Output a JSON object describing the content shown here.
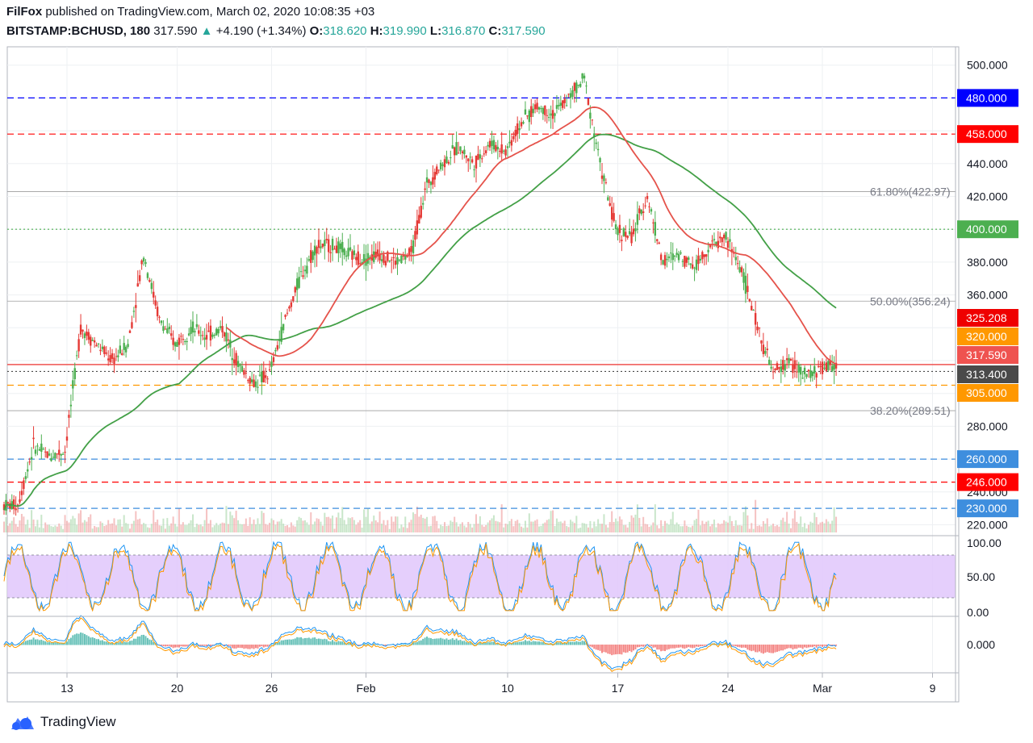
{
  "header": {
    "author": "FilFox",
    "published_text": "published on TradingView.com, March 02, 2020 10:08:35 +03",
    "symbol": "BITSTAMP:BCHUSD, 180",
    "last": "317.590",
    "change_arrow": "▲",
    "change": "+4.190 (+1.34%)",
    "o_label": "O:",
    "o": "318.620",
    "h_label": "H:",
    "h": "319.990",
    "l_label": "L:",
    "l": "316.870",
    "c_label": "C:",
    "c": "317.590"
  },
  "brand": {
    "name": "TradingView"
  },
  "colors": {
    "bull": "#26a69a",
    "bear": "#ef5350",
    "candle_up": "#4caf50",
    "candle_down": "#e53935",
    "ma_fast": "#e5534b",
    "ma_slow": "#43a047"
  },
  "chart_data": {
    "type": "candlestick",
    "x_tick_labels": [
      "13",
      "20",
      "26",
      "Feb",
      "10",
      "17",
      "24",
      "Mar",
      "9"
    ],
    "price_ticks": [
      "500.000",
      "440.000",
      "420.000",
      "380.000",
      "360.000",
      "280.000",
      "240.000",
      "220.000"
    ],
    "price_range": [
      215,
      510
    ],
    "horizontal_levels": [
      {
        "label": "480.000",
        "value": 480,
        "color": "#0000ff",
        "style": "dashed"
      },
      {
        "label": "458.000",
        "value": 458,
        "color": "#ff0000",
        "style": "dashed"
      },
      {
        "label": "400.000",
        "value": 400,
        "color": "#4caf50",
        "style": "dotted"
      },
      {
        "label": "325.208",
        "value": 325.208,
        "color": "#ef0000",
        "style": "none"
      },
      {
        "label": "320.000",
        "value": 320,
        "color": "#ff9800",
        "style": "none"
      },
      {
        "label": "317.590",
        "value": 317.59,
        "color": "#ef5350",
        "style": "solid"
      },
      {
        "label": "313.400",
        "value": 313.4,
        "color": "#4a4a4a",
        "style": "dotted"
      },
      {
        "label": "305.000",
        "value": 305,
        "color": "#ff9800",
        "style": "dashed"
      },
      {
        "label": "260.000",
        "value": 260,
        "color": "#3e8ede",
        "style": "dashed"
      },
      {
        "label": "246.000",
        "value": 246,
        "color": "#ff0000",
        "style": "dashed"
      },
      {
        "label": "230.000",
        "value": 230,
        "color": "#3e8ede",
        "style": "dashed"
      }
    ],
    "fib_levels": [
      {
        "label": "61.80%(422.97)",
        "value": 422.97
      },
      {
        "label": "50.00%(356.24)",
        "value": 356.24
      },
      {
        "label": "38.20%(289.51)",
        "value": 289.51
      }
    ],
    "price_series_approx": [
      [
        "Jan 9",
        232
      ],
      [
        "Jan 10",
        268
      ],
      [
        "Jan 12",
        262
      ],
      [
        "Jan 13",
        265
      ],
      [
        "Jan 14",
        340
      ],
      [
        "Jan 15",
        330
      ],
      [
        "Jan 16",
        320
      ],
      [
        "Jan 17",
        330
      ],
      [
        "Jan 18",
        385
      ],
      [
        "Jan 19",
        345
      ],
      [
        "Jan 20",
        330
      ],
      [
        "Jan 21",
        340
      ],
      [
        "Jan 22",
        335
      ],
      [
        "Jan 23",
        340
      ],
      [
        "Jan 24",
        318
      ],
      [
        "Jan 25",
        306
      ],
      [
        "Jan 26",
        312
      ],
      [
        "Jan 27",
        345
      ],
      [
        "Jan 28",
        372
      ],
      [
        "Jan 29",
        390
      ],
      [
        "Jan 30",
        390
      ],
      [
        "Jan 31",
        385
      ],
      [
        "Feb 1",
        382
      ],
      [
        "Feb 2",
        385
      ],
      [
        "Feb 3",
        380
      ],
      [
        "Feb 4",
        385
      ],
      [
        "Feb 5",
        428
      ],
      [
        "Feb 6",
        440
      ],
      [
        "Feb 7",
        450
      ],
      [
        "Feb 8",
        440
      ],
      [
        "Feb 9",
        452
      ],
      [
        "Feb 10",
        448
      ],
      [
        "Feb 11",
        465
      ],
      [
        "Feb 12",
        475
      ],
      [
        "Feb 13",
        470
      ],
      [
        "Feb 14",
        480
      ],
      [
        "Feb 15",
        492
      ],
      [
        "Feb 16",
        440
      ],
      [
        "Feb 17",
        400
      ],
      [
        "Feb 18",
        395
      ],
      [
        "Feb 19",
        420
      ],
      [
        "Feb 20",
        380
      ],
      [
        "Feb 21",
        385
      ],
      [
        "Feb 22",
        378
      ],
      [
        "Feb 23",
        390
      ],
      [
        "Feb 24",
        395
      ],
      [
        "Feb 25",
        375
      ],
      [
        "Feb 26",
        340
      ],
      [
        "Feb 27",
        312
      ],
      [
        "Feb 28",
        320
      ],
      [
        "Feb 29",
        310
      ],
      [
        "Mar 1",
        315
      ],
      [
        "Mar 2",
        318
      ]
    ],
    "stoch_ticks": [
      "100.00",
      "50.00",
      "0.00"
    ],
    "stoch_band": [
      20,
      80
    ],
    "macd_ticks": [
      "0.000"
    ]
  }
}
